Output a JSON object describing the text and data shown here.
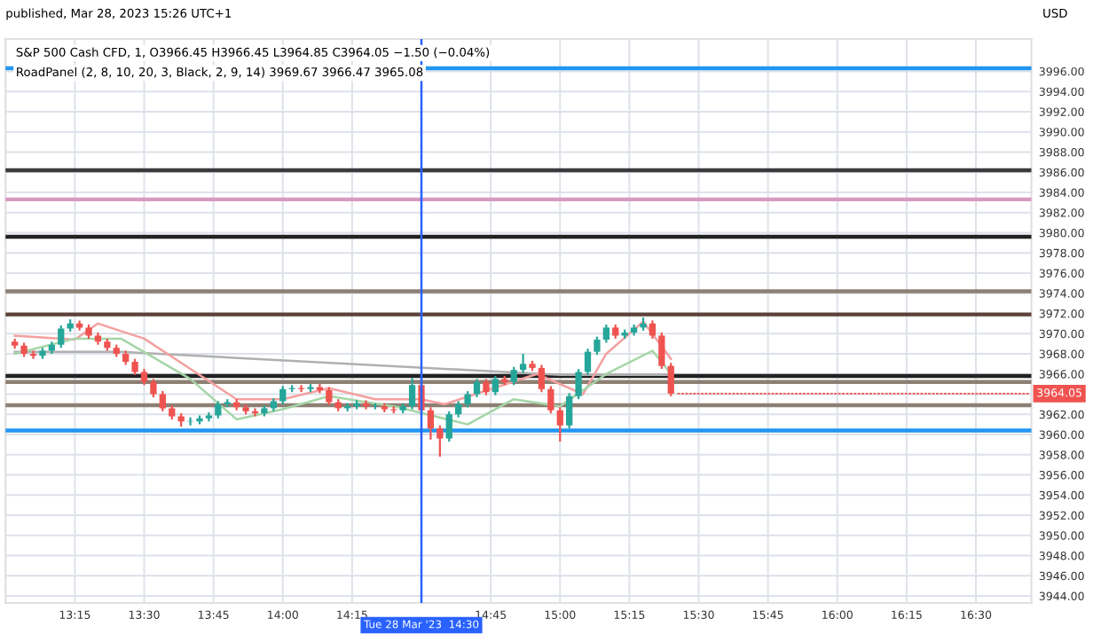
{
  "chart_data": {
    "type": "candlestick",
    "title": "S&P 500 Cash CFD, 1, O3966.45 H3966.45 L3964.85 C3964.05 −1.50 (−0.04%)",
    "subtitle": "RoadPanel (2, 8, 10, 20, 3, Black, 2, 9, 14) 3969.67 3966.47 3965.08",
    "annotations": [
      "published, Mar 28, 2023 15:26 UTC+1",
      "USD",
      {
        "text": "3964.05",
        "x": "2023-03-28T15:24",
        "y": 3964.05
      }
    ],
    "x": [
      "2023-03-28T13:02",
      "2023-03-28T13:04",
      "2023-03-28T13:06",
      "2023-03-28T13:08",
      "2023-03-28T13:10",
      "2023-03-28T13:12",
      "2023-03-28T13:14",
      "2023-03-28T13:16",
      "2023-03-28T13:18",
      "2023-03-28T13:20",
      "2023-03-28T13:22",
      "2023-03-28T13:24",
      "2023-03-28T13:26",
      "2023-03-28T13:28",
      "2023-03-28T13:30",
      "2023-03-28T13:32",
      "2023-03-28T13:34",
      "2023-03-28T13:36",
      "2023-03-28T13:38",
      "2023-03-28T13:40",
      "2023-03-28T13:42",
      "2023-03-28T13:44",
      "2023-03-28T13:46",
      "2023-03-28T13:48",
      "2023-03-28T13:50",
      "2023-03-28T13:52",
      "2023-03-28T13:54",
      "2023-03-28T13:56",
      "2023-03-28T13:58",
      "2023-03-28T14:00",
      "2023-03-28T14:02",
      "2023-03-28T14:04",
      "2023-03-28T14:06",
      "2023-03-28T14:08",
      "2023-03-28T14:10",
      "2023-03-28T14:12",
      "2023-03-28T14:14",
      "2023-03-28T14:16",
      "2023-03-28T14:18",
      "2023-03-28T14:20",
      "2023-03-28T14:22",
      "2023-03-28T14:24",
      "2023-03-28T14:26",
      "2023-03-28T14:28",
      "2023-03-28T14:30",
      "2023-03-28T14:32",
      "2023-03-28T14:34",
      "2023-03-28T14:36",
      "2023-03-28T14:38",
      "2023-03-28T14:40",
      "2023-03-28T14:42",
      "2023-03-28T14:44",
      "2023-03-28T14:46",
      "2023-03-28T14:48",
      "2023-03-28T14:50",
      "2023-03-28T14:52",
      "2023-03-28T14:54",
      "2023-03-28T14:56",
      "2023-03-28T14:58",
      "2023-03-28T15:00",
      "2023-03-28T15:02",
      "2023-03-28T15:04",
      "2023-03-28T15:06",
      "2023-03-28T15:08",
      "2023-03-28T15:10",
      "2023-03-28T15:12",
      "2023-03-28T15:14",
      "2023-03-28T15:16",
      "2023-03-28T15:18",
      "2023-03-28T15:20",
      "2023-03-28T15:22",
      "2023-03-28T15:24"
    ],
    "ohlc": [
      [
        3969.2,
        3969.5,
        3968.5,
        3968.8
      ],
      [
        3968.8,
        3969.1,
        3967.7,
        3968.0
      ],
      [
        3968.0,
        3968.3,
        3967.5,
        3967.8
      ],
      [
        3967.8,
        3968.6,
        3967.5,
        3968.3
      ],
      [
        3968.3,
        3969.2,
        3968.0,
        3968.9
      ],
      [
        3968.9,
        3970.8,
        3968.6,
        3970.5
      ],
      [
        3970.5,
        3971.4,
        3970.2,
        3971.0
      ],
      [
        3971.0,
        3971.3,
        3970.3,
        3970.6
      ],
      [
        3970.6,
        3970.9,
        3969.5,
        3969.8
      ],
      [
        3969.8,
        3970.1,
        3968.9,
        3969.2
      ],
      [
        3969.2,
        3969.5,
        3968.3,
        3968.6
      ],
      [
        3968.6,
        3968.9,
        3967.7,
        3968.0
      ],
      [
        3968.0,
        3968.3,
        3966.9,
        3967.2
      ],
      [
        3967.2,
        3967.5,
        3965.9,
        3966.2
      ],
      [
        3966.2,
        3966.5,
        3964.9,
        3965.2
      ],
      [
        3965.2,
        3965.5,
        3963.7,
        3964.0
      ],
      [
        3964.0,
        3964.3,
        3962.3,
        3962.6
      ],
      [
        3962.6,
        3962.9,
        3961.5,
        3961.8
      ],
      [
        3961.8,
        3962.1,
        3960.8,
        3961.3
      ],
      [
        3961.3,
        3961.7,
        3960.9,
        3961.3
      ],
      [
        3961.3,
        3961.9,
        3961.0,
        3961.6
      ],
      [
        3961.6,
        3962.2,
        3961.3,
        3961.9
      ],
      [
        3961.9,
        3963.3,
        3961.6,
        3963.0
      ],
      [
        3963.0,
        3963.5,
        3962.7,
        3963.2
      ],
      [
        3963.2,
        3963.5,
        3962.4,
        3962.7
      ],
      [
        3962.7,
        3963.0,
        3962.0,
        3962.3
      ],
      [
        3962.3,
        3962.6,
        3961.8,
        3962.1
      ],
      [
        3962.1,
        3962.9,
        3961.8,
        3962.6
      ],
      [
        3962.6,
        3963.6,
        3962.3,
        3963.3
      ],
      [
        3963.3,
        3964.8,
        3963.0,
        3964.5
      ],
      [
        3964.5,
        3964.9,
        3964.2,
        3964.6
      ],
      [
        3964.6,
        3964.9,
        3964.2,
        3964.5
      ],
      [
        3964.5,
        3965.0,
        3964.2,
        3964.7
      ],
      [
        3964.7,
        3965.0,
        3964.1,
        3964.4
      ],
      [
        3964.4,
        3964.7,
        3962.9,
        3963.2
      ],
      [
        3963.2,
        3963.5,
        3962.3,
        3962.6
      ],
      [
        3962.6,
        3963.1,
        3962.3,
        3962.8
      ],
      [
        3962.8,
        3963.4,
        3962.5,
        3963.1
      ],
      [
        3963.1,
        3963.4,
        3962.5,
        3962.8
      ],
      [
        3962.8,
        3963.1,
        3962.5,
        3962.8
      ],
      [
        3962.8,
        3963.1,
        3962.2,
        3962.5
      ],
      [
        3962.5,
        3962.8,
        3962.1,
        3962.4
      ],
      [
        3962.4,
        3963.1,
        3962.1,
        3962.8
      ],
      [
        3962.8,
        3965.6,
        3962.5,
        3964.9
      ],
      [
        3964.9,
        3965.2,
        3962.1,
        3962.4
      ],
      [
        3962.4,
        3962.7,
        3959.5,
        3960.6
      ],
      [
        3960.6,
        3960.9,
        3957.8,
        3959.6
      ],
      [
        3959.6,
        3962.3,
        3959.3,
        3962.0
      ],
      [
        3962.0,
        3963.3,
        3961.7,
        3963.0
      ],
      [
        3963.0,
        3964.3,
        3962.7,
        3964.0
      ],
      [
        3964.0,
        3965.5,
        3963.7,
        3965.2
      ],
      [
        3965.2,
        3965.5,
        3963.9,
        3964.2
      ],
      [
        3964.2,
        3965.8,
        3963.9,
        3965.5
      ],
      [
        3965.5,
        3965.8,
        3964.9,
        3965.2
      ],
      [
        3965.2,
        3966.7,
        3964.9,
        3966.4
      ],
      [
        3966.4,
        3968.0,
        3966.1,
        3967.0
      ],
      [
        3967.0,
        3967.3,
        3966.3,
        3966.6
      ],
      [
        3966.6,
        3966.9,
        3964.2,
        3964.5
      ],
      [
        3964.5,
        3964.8,
        3962.1,
        3962.4
      ],
      [
        3962.4,
        3962.7,
        3959.3,
        3960.9
      ],
      [
        3960.9,
        3964.1,
        3960.6,
        3963.8
      ],
      [
        3963.8,
        3966.5,
        3963.5,
        3966.2
      ],
      [
        3966.2,
        3968.5,
        3965.9,
        3968.2
      ],
      [
        3968.2,
        3969.7,
        3967.9,
        3969.4
      ],
      [
        3969.4,
        3970.9,
        3969.1,
        3970.6
      ],
      [
        3970.6,
        3970.9,
        3969.5,
        3969.8
      ],
      [
        3969.8,
        3970.4,
        3969.5,
        3970.1
      ],
      [
        3970.1,
        3970.9,
        3969.8,
        3970.6
      ],
      [
        3970.6,
        3971.6,
        3970.3,
        3971.0
      ],
      [
        3971.0,
        3971.3,
        3969.5,
        3969.8
      ],
      [
        3969.8,
        3970.1,
        3966.5,
        3966.8
      ],
      [
        3966.8,
        3967.1,
        3963.8,
        3964.05
      ]
    ],
    "colors": [
      "#ef5350",
      "#ef5350",
      "#ef5350",
      "#26a69a",
      "#26a69a",
      "#26a69a",
      "#26a69a",
      "#ef5350",
      "#ef5350",
      "#ef5350",
      "#ef5350",
      "#ef5350",
      "#ef5350",
      "#ef5350",
      "#ef5350",
      "#ef5350",
      "#ef5350",
      "#ef5350",
      "#ef5350",
      "#26a69a",
      "#26a69a",
      "#26a69a",
      "#26a69a",
      "#26a69a",
      "#ef5350",
      "#ef5350",
      "#ef5350",
      "#26a69a",
      "#26a69a",
      "#26a69a",
      "#26a69a",
      "#ef5350",
      "#26a69a",
      "#ef5350",
      "#ef5350",
      "#ef5350",
      "#26a69a",
      "#26a69a",
      "#ef5350",
      "#26a69a",
      "#ef5350",
      "#ef5350",
      "#26a69a",
      "#26a69a",
      "#ef5350",
      "#ef5350",
      "#ef5350",
      "#26a69a",
      "#26a69a",
      "#26a69a",
      "#26a69a",
      "#ef5350",
      "#26a69a",
      "#ef5350",
      "#26a69a",
      "#26a69a",
      "#ef5350",
      "#ef5350",
      "#ef5350",
      "#ef5350",
      "#26a69a",
      "#26a69a",
      "#26a69a",
      "#26a69a",
      "#26a69a",
      "#ef5350",
      "#26a69a",
      "#26a69a",
      "#26a69a",
      "#ef5350",
      "#ef5350",
      "#ef5350"
    ],
    "series": [
      {
        "type": "line",
        "color": "#b0b0b0",
        "x": [
          "2023-03-28T13:02",
          "2023-03-28T13:25",
          "2023-03-28T15:00",
          "2023-03-28T15:24"
        ],
        "values": [
          3968.2,
          3968.2,
          3965.9,
          3965.9
        ]
      },
      {
        "type": "line",
        "color": "#f4a0a0",
        "x": [
          "2023-03-28T13:02",
          "2023-03-28T13:15",
          "2023-03-28T13:20",
          "2023-03-28T13:30",
          "2023-03-28T13:40",
          "2023-03-28T13:50",
          "2023-03-28T14:00",
          "2023-03-28T14:10",
          "2023-03-28T14:20",
          "2023-03-28T14:30",
          "2023-03-28T14:35",
          "2023-03-28T14:45",
          "2023-03-28T14:55",
          "2023-03-28T15:05",
          "2023-03-28T15:10",
          "2023-03-28T15:18",
          "2023-03-28T15:24"
        ],
        "values": [
          3969.8,
          3969.4,
          3971.0,
          3969.5,
          3966.5,
          3963.5,
          3963.5,
          3964.6,
          3963.5,
          3963.5,
          3963.0,
          3964.5,
          3966.0,
          3964.0,
          3968.0,
          3971.2,
          3967.5
        ]
      },
      {
        "type": "line",
        "color": "#a5d6a7",
        "x": [
          "2023-03-28T13:02",
          "2023-03-28T13:15",
          "2023-03-28T13:25",
          "2023-03-28T13:40",
          "2023-03-28T13:50",
          "2023-03-28T14:00",
          "2023-03-28T14:10",
          "2023-03-28T14:25",
          "2023-03-28T14:40",
          "2023-03-28T14:50",
          "2023-03-28T15:00",
          "2023-03-28T15:10",
          "2023-03-28T15:20",
          "2023-03-28T15:24"
        ],
        "values": [
          3968.0,
          3969.5,
          3969.5,
          3965.5,
          3961.5,
          3962.5,
          3963.8,
          3962.7,
          3961.0,
          3963.5,
          3962.8,
          3966.0,
          3968.3,
          3966.0
        ]
      }
    ],
    "ref_lines": [
      {
        "axis": "y",
        "value": 3996.3,
        "color": "#2196f3"
      },
      {
        "axis": "y",
        "value": 3986.2,
        "color": "#3b3b3b"
      },
      {
        "axis": "y",
        "value": 3983.3,
        "color": "#d69ac2"
      },
      {
        "axis": "y",
        "value": 3979.6,
        "color": "#222222"
      },
      {
        "axis": "y",
        "value": 3974.2,
        "color": "#8d7f73"
      },
      {
        "axis": "y",
        "value": 3971.9,
        "color": "#5d4037"
      },
      {
        "axis": "y",
        "value": 3965.8,
        "color": "#222222"
      },
      {
        "axis": "y",
        "value": 3965.2,
        "color": "#8d7f73"
      },
      {
        "axis": "y",
        "value": 3962.9,
        "color": "#8d7f73"
      },
      {
        "axis": "y",
        "value": 3960.4,
        "color": "#2196f3"
      },
      {
        "axis": "x",
        "value": "2023-03-28T14:30",
        "label": "Tue 28 Mar '23  14:30",
        "color": "#2962ff"
      }
    ],
    "xlim": [
      "2023-03-28T13:00",
      "2023-03-28T16:42"
    ],
    "xticks": [
      {
        "value": "2023-03-28T13:15",
        "label": "13:15"
      },
      {
        "value": "2023-03-28T13:30",
        "label": "13:30"
      },
      {
        "value": "2023-03-28T13:45",
        "label": "13:45"
      },
      {
        "value": "2023-03-28T14:00",
        "label": "14:00"
      },
      {
        "value": "2023-03-28T14:15",
        "label": "14:15"
      },
      {
        "value": "2023-03-28T14:45",
        "label": "14:45"
      },
      {
        "value": "2023-03-28T15:00",
        "label": "15:00"
      },
      {
        "value": "2023-03-28T15:15",
        "label": "15:15"
      },
      {
        "value": "2023-03-28T15:30",
        "label": "15:30"
      },
      {
        "value": "2023-03-28T15:45",
        "label": "15:45"
      },
      {
        "value": "2023-03-28T16:00",
        "label": "16:00"
      },
      {
        "value": "2023-03-28T16:15",
        "label": "16:15"
      },
      {
        "value": "2023-03-28T16:30",
        "label": "16:30"
      }
    ],
    "ylim": [
      3943.3,
      3999.2
    ],
    "yticks": [
      {
        "value": 3944,
        "label": "3944.00"
      },
      {
        "value": 3946,
        "label": "3946.00"
      },
      {
        "value": 3948,
        "label": "3948.00"
      },
      {
        "value": 3950,
        "label": "3950.00"
      },
      {
        "value": 3952,
        "label": "3952.00"
      },
      {
        "value": 3954,
        "label": "3954.00"
      },
      {
        "value": 3956,
        "label": "3956.00"
      },
      {
        "value": 3958,
        "label": "3958.00"
      },
      {
        "value": 3960,
        "label": "3960.00"
      },
      {
        "value": 3962,
        "label": "3962.00"
      },
      {
        "value": 3964,
        "label": null
      },
      {
        "value": 3966,
        "label": "3966.00"
      },
      {
        "value": 3968,
        "label": "3968.00"
      },
      {
        "value": 3970,
        "label": "3970.00"
      },
      {
        "value": 3972,
        "label": "3972.00"
      },
      {
        "value": 3974,
        "label": "3974.00"
      },
      {
        "value": 3976,
        "label": "3976.00"
      },
      {
        "value": 3978,
        "label": "3978.00"
      },
      {
        "value": 3980,
        "label": "3980.00"
      },
      {
        "value": 3982,
        "label": "3982.00"
      },
      {
        "value": 3984,
        "label": "3984.00"
      },
      {
        "value": 3986,
        "label": "3986.00"
      },
      {
        "value": 3988,
        "label": "3988.00"
      },
      {
        "value": 3990,
        "label": "3990.00"
      },
      {
        "value": 3992,
        "label": "3992.00"
      },
      {
        "value": 3994,
        "label": "3994.00"
      },
      {
        "value": 3996,
        "label": "3996.00"
      }
    ],
    "grid": true
  }
}
